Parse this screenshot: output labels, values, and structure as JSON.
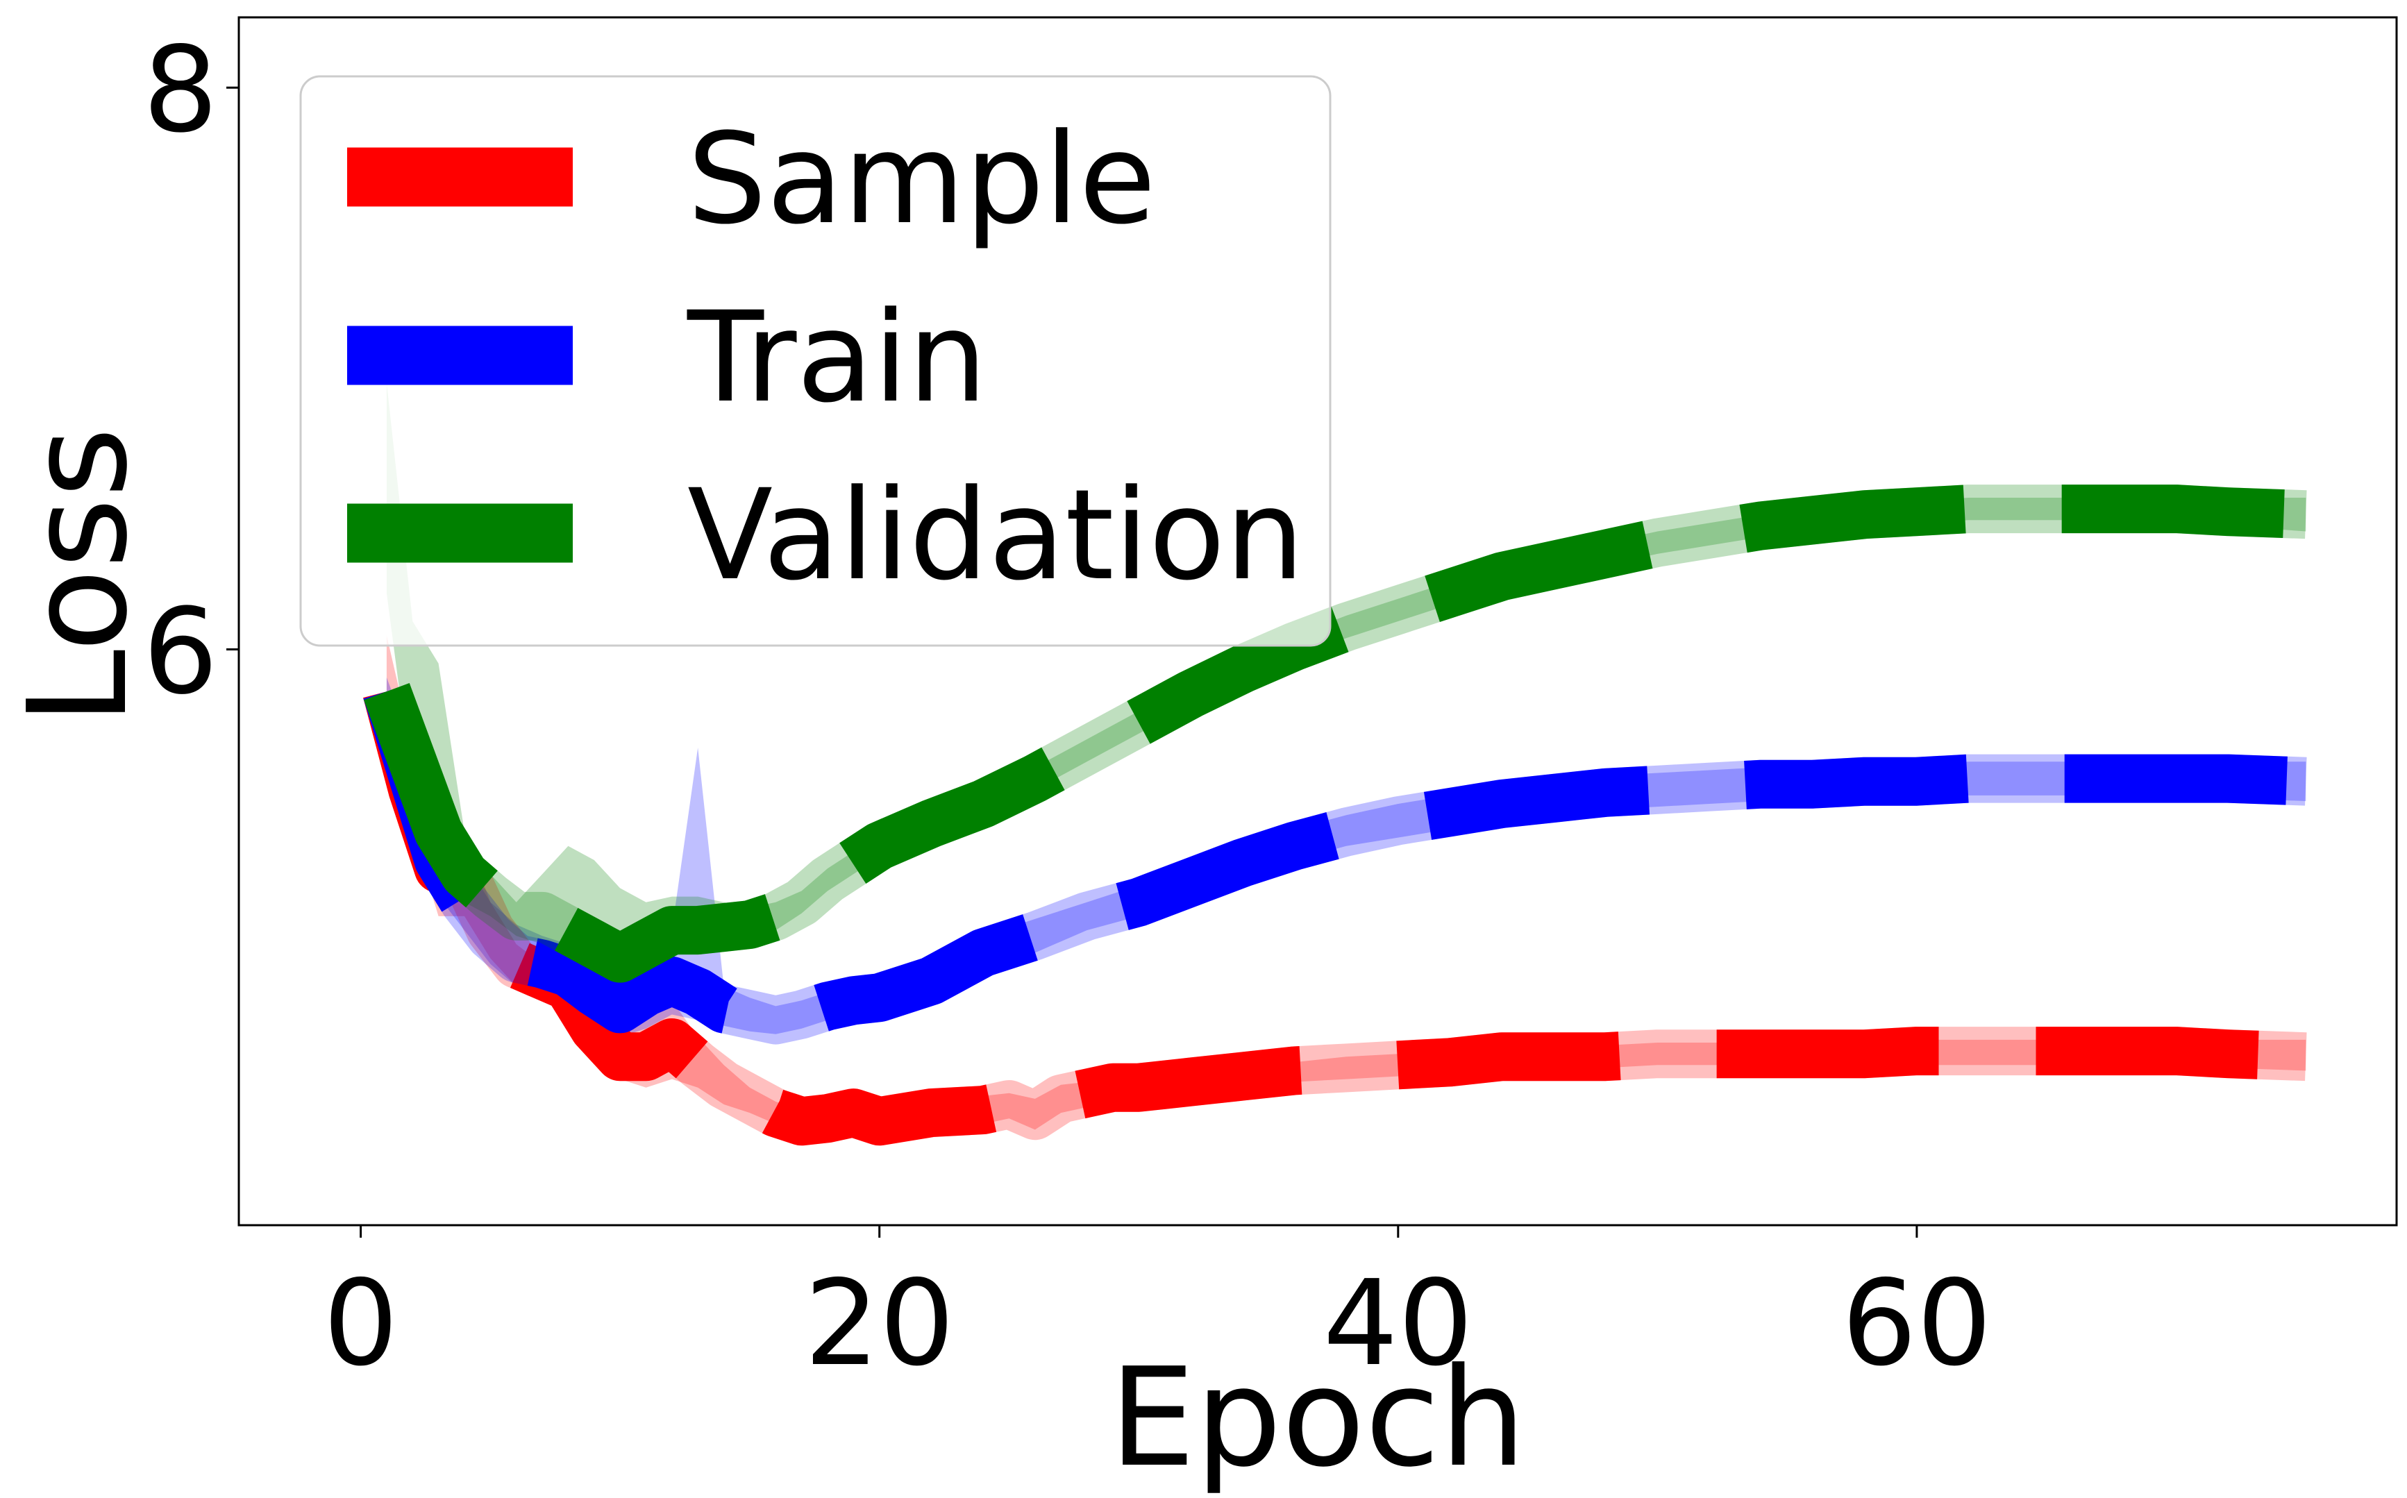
{
  "chart_data": {
    "type": "line",
    "title": "",
    "xlabel": "Epoch",
    "ylabel": "Loss",
    "xlim": [
      -4.7,
      78.5
    ],
    "ylim": [
      3.95,
      8.25
    ],
    "xticks": [
      0,
      20,
      40,
      60
    ],
    "yticks": [
      6,
      8
    ],
    "xtick_labels": [
      "0",
      "20",
      "40",
      "60"
    ],
    "ytick_labels": [
      "6",
      "8"
    ],
    "grid": false,
    "legend_position": "top-left",
    "line_style": "dashed",
    "band_note": "shaded bands show spread across runs",
    "series": [
      {
        "name": "Sample",
        "color": "#ff0000",
        "x": [
          1,
          2,
          3,
          4,
          5,
          6,
          7,
          8,
          9,
          10,
          11,
          12,
          13,
          14,
          15,
          16,
          17,
          18,
          19,
          20,
          22,
          24,
          25,
          26,
          27,
          28,
          29,
          30,
          31,
          32,
          34,
          36,
          38,
          40,
          42,
          44,
          46,
          48,
          50,
          52,
          54,
          56,
          58,
          60,
          62,
          64,
          66,
          68,
          70,
          72,
          75
        ],
        "y": [
          5.85,
          5.5,
          5.22,
          5.2,
          5.0,
          4.88,
          4.84,
          4.8,
          4.65,
          4.55,
          4.55,
          4.6,
          4.52,
          4.45,
          4.4,
          4.35,
          4.32,
          4.33,
          4.35,
          4.32,
          4.35,
          4.36,
          4.38,
          4.34,
          4.4,
          4.42,
          4.44,
          4.44,
          4.45,
          4.46,
          4.48,
          4.5,
          4.51,
          4.52,
          4.53,
          4.55,
          4.55,
          4.55,
          4.56,
          4.56,
          4.56,
          4.56,
          4.56,
          4.57,
          4.57,
          4.57,
          4.57,
          4.57,
          4.57,
          4.56,
          4.55
        ],
        "band_upper": [
          6.05,
          5.65,
          5.45,
          5.35,
          5.1,
          4.95,
          4.88,
          4.86,
          4.72,
          4.64,
          4.68,
          4.75,
          4.62,
          4.52,
          4.44,
          4.39,
          4.36,
          4.37,
          4.4,
          4.37,
          4.4,
          4.41,
          4.42,
          4.4,
          4.45,
          4.46,
          4.48,
          4.48,
          4.49,
          4.5,
          4.52,
          4.53,
          4.55,
          4.56,
          4.57,
          4.58,
          4.59,
          4.59,
          4.6,
          4.6,
          4.6,
          4.6,
          4.6,
          4.61,
          4.61,
          4.61,
          4.61,
          4.61,
          4.61,
          4.61,
          4.61
        ],
        "band_lower": [
          5.7,
          5.35,
          5.05,
          5.05,
          4.9,
          4.8,
          4.78,
          4.74,
          4.58,
          4.47,
          4.44,
          4.47,
          4.44,
          4.38,
          4.35,
          4.31,
          4.29,
          4.29,
          4.3,
          4.28,
          4.3,
          4.31,
          4.33,
          4.29,
          4.35,
          4.37,
          4.4,
          4.4,
          4.41,
          4.42,
          4.44,
          4.46,
          4.47,
          4.48,
          4.49,
          4.5,
          4.51,
          4.51,
          4.52,
          4.52,
          4.52,
          4.52,
          4.52,
          4.52,
          4.52,
          4.52,
          4.52,
          4.52,
          4.52,
          4.51,
          4.5
        ]
      },
      {
        "name": "Train",
        "color": "#0000ff",
        "x": [
          1,
          2,
          3,
          4,
          5,
          6,
          7,
          8,
          9,
          10,
          11,
          12,
          13,
          14,
          15,
          16,
          17,
          18,
          19,
          20,
          22,
          24,
          26,
          28,
          30,
          32,
          34,
          36,
          38,
          40,
          42,
          44,
          46,
          48,
          50,
          52,
          54,
          56,
          58,
          60,
          62,
          64,
          66,
          68,
          70,
          72,
          75
        ],
        "y": [
          5.85,
          5.55,
          5.25,
          5.1,
          4.98,
          4.9,
          4.88,
          4.85,
          4.78,
          4.72,
          4.78,
          4.82,
          4.78,
          4.72,
          4.7,
          4.68,
          4.7,
          4.73,
          4.75,
          4.76,
          4.82,
          4.92,
          4.98,
          5.05,
          5.1,
          5.17,
          5.24,
          5.3,
          5.35,
          5.39,
          5.42,
          5.45,
          5.47,
          5.49,
          5.5,
          5.51,
          5.52,
          5.52,
          5.53,
          5.53,
          5.54,
          5.54,
          5.54,
          5.54,
          5.54,
          5.54,
          5.53
        ],
        "band_upper": [
          5.9,
          5.65,
          5.4,
          5.25,
          5.1,
          5.02,
          4.98,
          4.95,
          4.9,
          4.88,
          4.98,
          5.0,
          5.65,
          4.8,
          4.76,
          4.73,
          4.75,
          4.78,
          4.8,
          4.82,
          4.88,
          4.98,
          5.04,
          5.1,
          5.16,
          5.23,
          5.3,
          5.36,
          5.41,
          5.45,
          5.48,
          5.51,
          5.53,
          5.55,
          5.56,
          5.57,
          5.58,
          5.58,
          5.59,
          5.59,
          5.6,
          5.6,
          5.6,
          5.6,
          5.6,
          5.6,
          5.6
        ],
        "band_lower": [
          5.78,
          5.45,
          5.12,
          5.0,
          4.88,
          4.8,
          4.78,
          4.75,
          4.68,
          4.62,
          4.65,
          4.7,
          4.68,
          4.66,
          4.64,
          4.63,
          4.65,
          4.68,
          4.7,
          4.71,
          4.76,
          4.86,
          4.92,
          5.0,
          5.05,
          5.12,
          5.19,
          5.25,
          5.3,
          5.33,
          5.36,
          5.39,
          5.41,
          5.43,
          5.44,
          5.45,
          5.46,
          5.46,
          5.47,
          5.47,
          5.48,
          5.48,
          5.48,
          5.48,
          5.48,
          5.47,
          5.46
        ]
      },
      {
        "name": "Validation",
        "color": "#008000",
        "x": [
          1,
          2,
          3,
          4,
          5,
          6,
          7,
          8,
          9,
          10,
          11,
          12,
          13,
          14,
          15,
          16,
          17,
          18,
          20,
          22,
          24,
          26,
          28,
          30,
          32,
          34,
          36,
          38,
          40,
          42,
          44,
          46,
          48,
          50,
          52,
          54,
          56,
          58,
          60,
          62,
          64,
          66,
          68,
          70,
          72,
          75
        ],
        "y": [
          5.85,
          5.6,
          5.35,
          5.2,
          5.12,
          5.05,
          5.05,
          5.0,
          4.95,
          4.9,
          4.95,
          5.0,
          5.0,
          5.01,
          5.02,
          5.05,
          5.1,
          5.18,
          5.3,
          5.38,
          5.45,
          5.54,
          5.64,
          5.74,
          5.84,
          5.93,
          6.01,
          6.08,
          6.14,
          6.2,
          6.26,
          6.3,
          6.34,
          6.38,
          6.41,
          6.44,
          6.46,
          6.48,
          6.49,
          6.5,
          6.5,
          6.5,
          6.5,
          6.5,
          6.49,
          6.48
        ],
        "band_upper": [
          6.95,
          6.1,
          5.95,
          5.35,
          5.2,
          5.1,
          5.2,
          5.3,
          5.25,
          5.15,
          5.1,
          5.12,
          5.12,
          5.1,
          5.08,
          5.1,
          5.14,
          5.22,
          5.34,
          5.42,
          5.49,
          5.58,
          5.68,
          5.78,
          5.88,
          5.97,
          6.05,
          6.12,
          6.18,
          6.24,
          6.3,
          6.34,
          6.38,
          6.42,
          6.45,
          6.48,
          6.5,
          6.52,
          6.53,
          6.54,
          6.54,
          6.54,
          6.54,
          6.54,
          6.54,
          6.54
        ],
        "band_lower": [
          6.2,
          5.5,
          5.2,
          5.1,
          5.05,
          4.98,
          4.95,
          4.9,
          4.85,
          4.82,
          4.88,
          4.92,
          4.93,
          4.95,
          4.96,
          5.0,
          5.06,
          5.14,
          5.26,
          5.34,
          5.41,
          5.5,
          5.6,
          5.7,
          5.8,
          5.89,
          5.97,
          6.04,
          6.1,
          6.16,
          6.22,
          6.26,
          6.3,
          6.34,
          6.37,
          6.4,
          6.42,
          6.44,
          6.45,
          6.46,
          6.46,
          6.46,
          6.46,
          6.46,
          6.44,
          6.42
        ]
      }
    ]
  }
}
